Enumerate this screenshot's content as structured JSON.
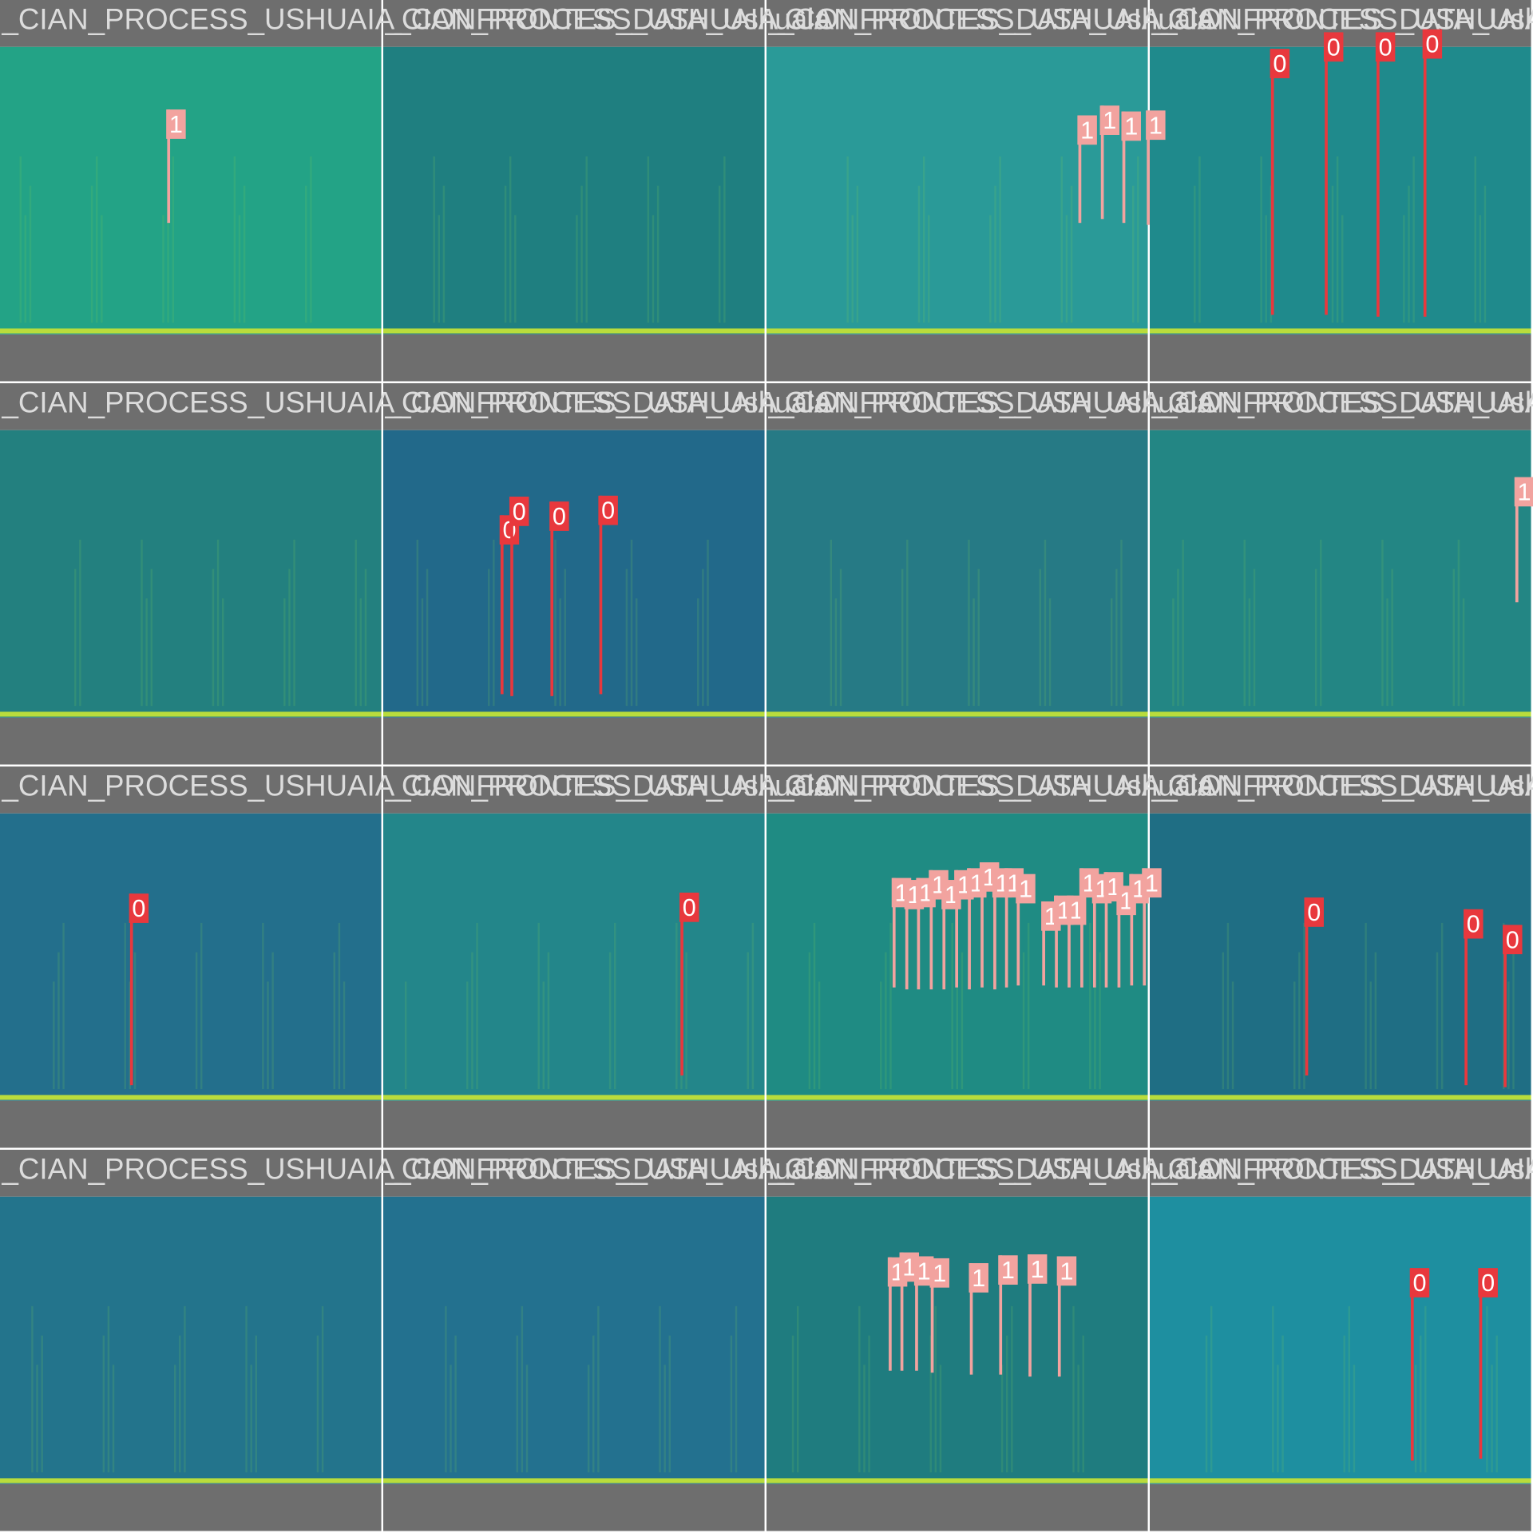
{
  "tiles": [
    {
      "title": "_CIAN_PROCESS_USHUAIA_CONFRONTES_DATA_Ushuaia",
      "boxes": [
        {
          "label": "1"
        }
      ]
    },
    {
      "title": "_CIAN_PROCESS_USHUAIA_CONFRONTES_DATA_Ushuaia",
      "boxes": []
    },
    {
      "title": "_CIAN_PROCESS_USHUAIA_CONFRONTES_DATA_Ushuaia",
      "boxes": [
        {
          "label": "1"
        },
        {
          "label": "1"
        },
        {
          "label": "1"
        },
        {
          "label": "1"
        }
      ]
    },
    {
      "title": "_CIAN_PROCESS_USHUAIA_CONFRONTES_DATA_Ushuaia",
      "boxes": [
        {
          "label": "0"
        },
        {
          "label": "0"
        },
        {
          "label": "0"
        },
        {
          "label": "0"
        }
      ]
    },
    {
      "title": "_CIAN_PROCESS_USHUAIA_CONFRONTES_DATA_Ushuaia",
      "boxes": []
    },
    {
      "title": "_CIAN_PROCESS_USHUAIA_CONFRONTES_DATA_Ushuaia",
      "boxes": [
        {
          "label": "0"
        },
        {
          "label": "0"
        },
        {
          "label": "0"
        },
        {
          "label": "0"
        }
      ]
    },
    {
      "title": "_CIAN_PROCESS_USHUAIA_CONFRONTES_DATA_Ushuaia",
      "boxes": []
    },
    {
      "title": "_CIAN_PROCESS_USHUAIA_CONFRONTES_DATA_Ushuaia",
      "boxes": [
        {
          "label": "1"
        }
      ]
    },
    {
      "title": "_CIAN_PROCESS_USHUAIA_CONFRONTES_DATA_Ushuaia",
      "boxes": [
        {
          "label": "0"
        }
      ]
    },
    {
      "title": "_CIAN_PROCESS_USHUAIA_CONFRONTES_DATA_Ushuaia",
      "boxes": [
        {
          "label": "0"
        }
      ]
    },
    {
      "title": "_CIAN_PROCESS_USHUAIA_CONFRONTES_DATA_Ushuaia",
      "boxes": [
        {
          "label": "1"
        },
        {
          "label": "1"
        },
        {
          "label": "1"
        },
        {
          "label": "1"
        },
        {
          "label": "1"
        },
        {
          "label": "1"
        },
        {
          "label": "1"
        },
        {
          "label": "1"
        },
        {
          "label": "1"
        },
        {
          "label": "1"
        },
        {
          "label": "1"
        },
        {
          "label": "1"
        },
        {
          "label": "1"
        },
        {
          "label": "1"
        },
        {
          "label": "1"
        },
        {
          "label": "1"
        },
        {
          "label": "1"
        },
        {
          "label": "1"
        },
        {
          "label": "1"
        },
        {
          "label": "1"
        }
      ]
    },
    {
      "title": "_CIAN_PROCESS_USHUAIA_CONFRONTES_DATA_Ushuaia",
      "boxes": [
        {
          "label": "0"
        },
        {
          "label": "0"
        },
        {
          "label": "0"
        }
      ]
    },
    {
      "title": "_CIAN_PROCESS_USHUAIA_CONFRONTES_DATA_Ushuaia",
      "boxes": []
    },
    {
      "title": "_CIAN_PROCESS_USHUAIA_CONFRONTES_DATA_Ushuaia",
      "boxes": []
    },
    {
      "title": "_CIAN_PROCESS_USHUAIA_CONFRONTES_DATA_Ushuaia",
      "boxes": [
        {
          "label": "1"
        },
        {
          "label": "1"
        },
        {
          "label": "1"
        },
        {
          "label": "1"
        },
        {
          "label": "1"
        },
        {
          "label": "1"
        },
        {
          "label": "1"
        },
        {
          "label": "1"
        }
      ]
    },
    {
      "title": "_CIAN_PROCESS_USHUAIA_CONFRONTES_DATA_Ushuaia",
      "boxes": [
        {
          "label": "0"
        },
        {
          "label": "0"
        }
      ]
    }
  ]
}
